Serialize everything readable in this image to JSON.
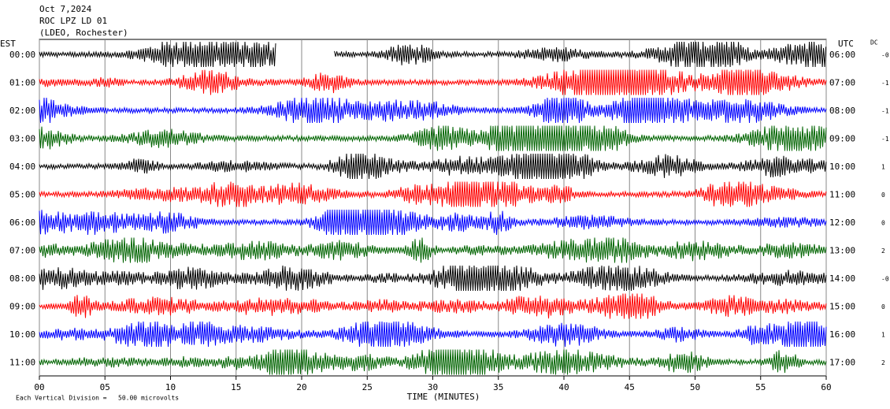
{
  "header": {
    "lines": [
      "Oct 7,2024",
      "ROC LPZ LD 01",
      "(LDEO, Rochester)"
    ]
  },
  "chart_data": {
    "type": "helicorder",
    "left_axis_title": "EST",
    "right_axis_title": "UTC",
    "dc_title": "DC",
    "rows": [
      {
        "est": "00:00",
        "utc": "06:00",
        "dc": "-0",
        "color": "#000000",
        "gap": [
          18.1,
          22.5
        ]
      },
      {
        "est": "01:00",
        "utc": "07:00",
        "dc": "-1",
        "color": "#ff0000"
      },
      {
        "est": "02:00",
        "utc": "08:00",
        "dc": "-1",
        "color": "#0000ff"
      },
      {
        "est": "03:00",
        "utc": "09:00",
        "dc": "-1",
        "color": "#006400"
      },
      {
        "est": "04:00",
        "utc": "10:00",
        "dc": "1",
        "color": "#000000"
      },
      {
        "est": "05:00",
        "utc": "11:00",
        "dc": "0",
        "color": "#ff0000"
      },
      {
        "est": "06:00",
        "utc": "12:00",
        "dc": "0",
        "color": "#0000ff"
      },
      {
        "est": "07:00",
        "utc": "13:00",
        "dc": "2",
        "color": "#006400"
      },
      {
        "est": "08:00",
        "utc": "14:00",
        "dc": "-0",
        "color": "#000000"
      },
      {
        "est": "09:00",
        "utc": "15:00",
        "dc": "0",
        "color": "#ff0000"
      },
      {
        "est": "10:00",
        "utc": "16:00",
        "dc": "1",
        "color": "#0000ff"
      },
      {
        "est": "11:00",
        "utc": "17:00",
        "dc": "2",
        "color": "#006400"
      }
    ],
    "xlim": [
      0,
      60
    ],
    "xticks": [
      {
        "value": 0,
        "label": "00"
      },
      {
        "value": 5,
        "label": "05"
      },
      10,
      15,
      20,
      25,
      30,
      35,
      40,
      45,
      50,
      55,
      60
    ],
    "x_label": "TIME (MINUTES)",
    "grid": true
  },
  "footer": "Each Vertical Division =   50.00 microvolts"
}
